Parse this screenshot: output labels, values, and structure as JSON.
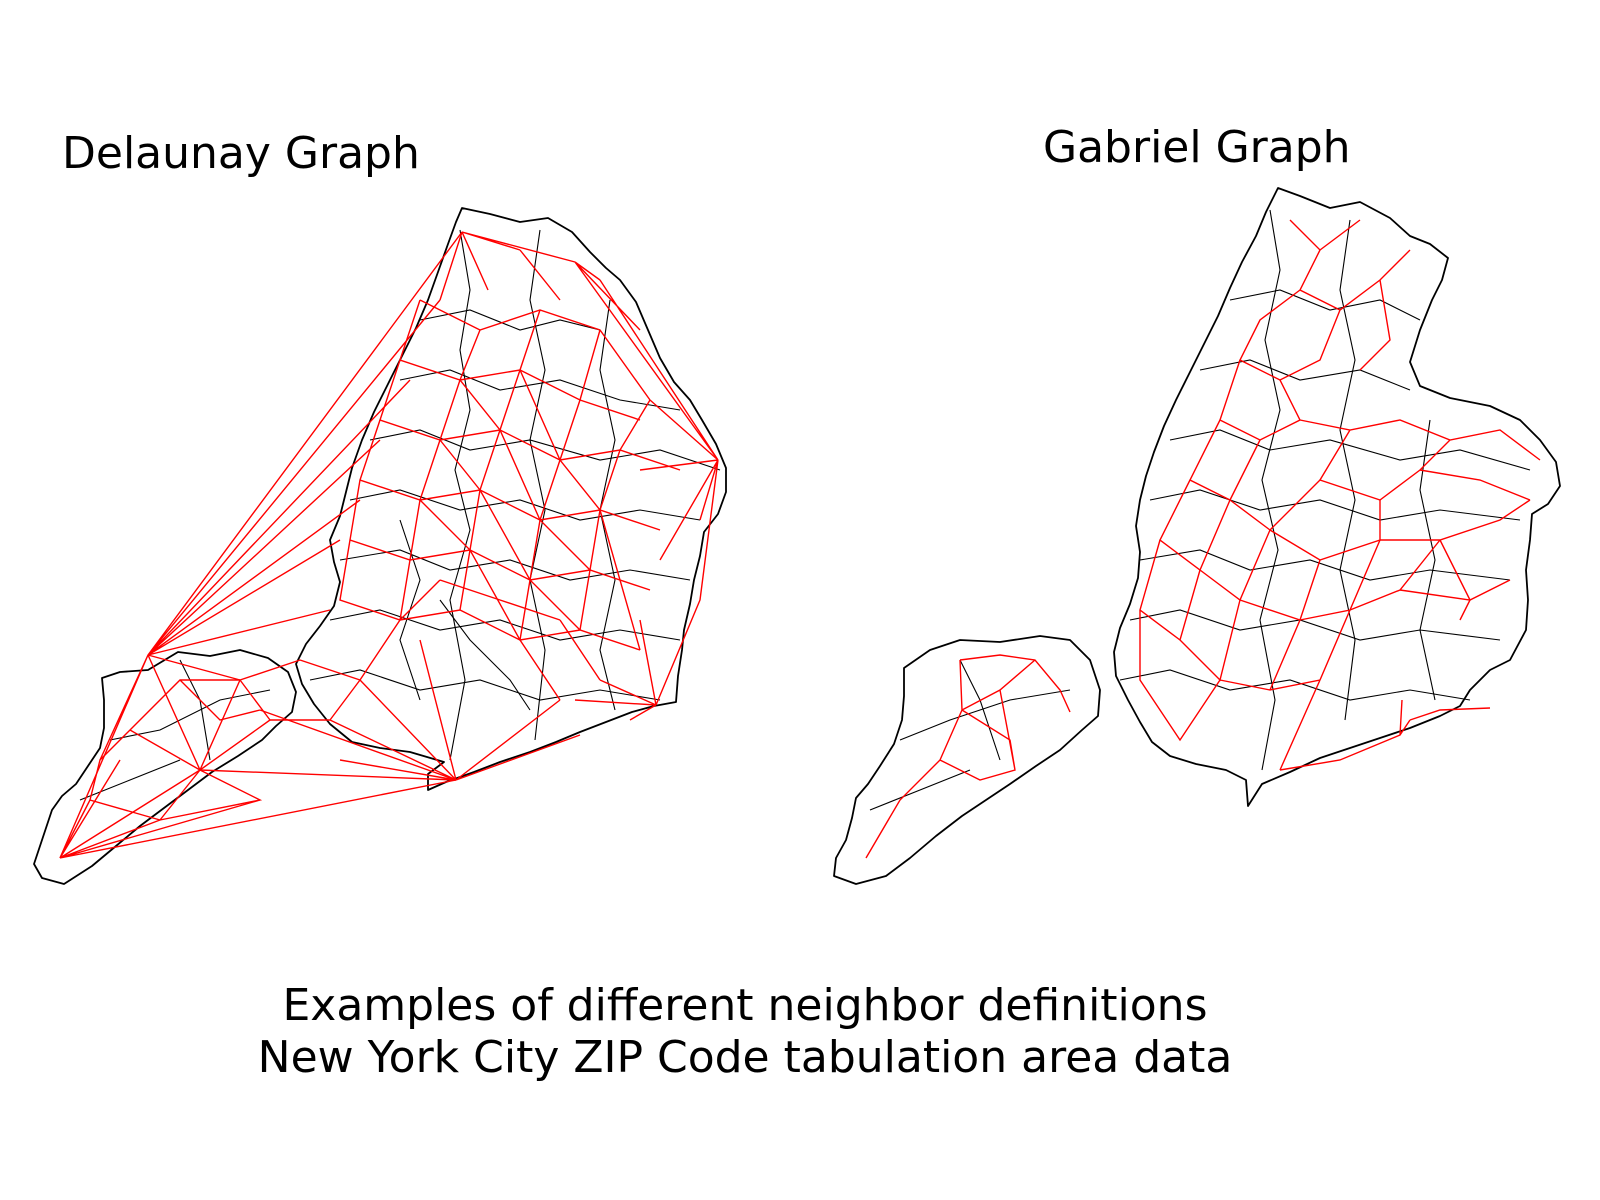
{
  "panels": {
    "left": {
      "title": "Delaunay Graph"
    },
    "right": {
      "title": "Gabriel Graph"
    }
  },
  "caption": {
    "line1": "Examples of different neighbor definitions",
    "line2": "New York City ZIP Code tabulation area data"
  },
  "colors": {
    "edges": "#ff0000",
    "boundaries": "#000000",
    "background": "#ffffff"
  }
}
